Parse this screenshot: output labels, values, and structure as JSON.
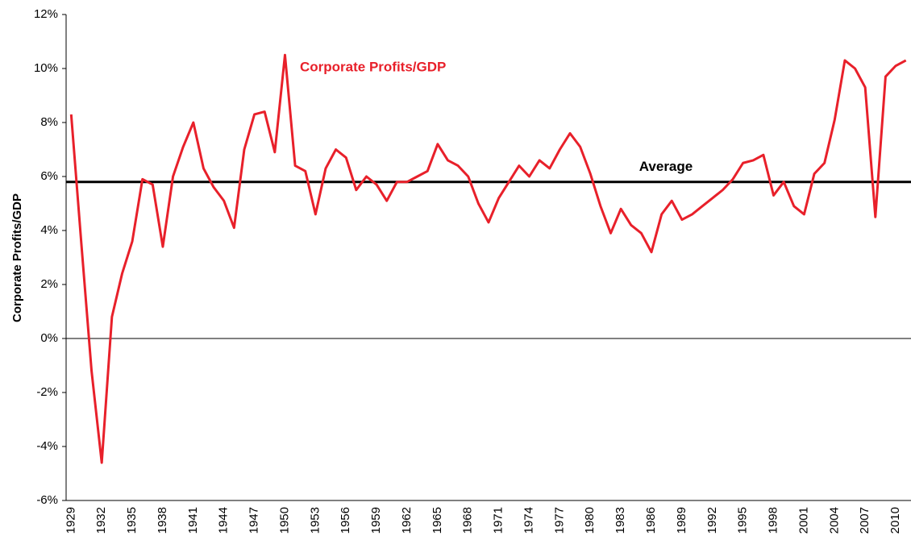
{
  "chart_data": {
    "type": "line",
    "y_label": "Corporate Profits/GDP",
    "categories": [
      "1929",
      null,
      null,
      "1932",
      null,
      null,
      "1935",
      null,
      null,
      "1938",
      null,
      null,
      "1941",
      null,
      null,
      "1944",
      null,
      null,
      "1947",
      null,
      null,
      "1950",
      null,
      null,
      "1953",
      null,
      null,
      "1956",
      null,
      null,
      "1959",
      null,
      null,
      "1962",
      null,
      null,
      "1965",
      null,
      null,
      "1968",
      null,
      null,
      "1971",
      null,
      null,
      "1974",
      null,
      null,
      "1977",
      null,
      null,
      "1980",
      null,
      null,
      "1983",
      null,
      null,
      "1986",
      null,
      null,
      "1989",
      null,
      null,
      "1992",
      null,
      null,
      "1995",
      null,
      null,
      "1998",
      null,
      null,
      "2001",
      null,
      null,
      "2004",
      null,
      null,
      "2007",
      null,
      null,
      "2010",
      null
    ],
    "series": [
      {
        "name": "Corporate Profits/GDP",
        "color": "#e8202a",
        "values": [
          8.3,
          3.5,
          -1.2,
          -4.6,
          0.8,
          2.4,
          3.6,
          5.9,
          5.7,
          3.4,
          6.0,
          7.1,
          8.0,
          6.3,
          5.6,
          5.1,
          4.1,
          7.0,
          8.3,
          8.4,
          6.9,
          10.5,
          6.4,
          6.2,
          4.6,
          6.3,
          7.0,
          6.7,
          5.5,
          6.0,
          5.7,
          5.1,
          5.8,
          5.8,
          6.0,
          6.2,
          7.2,
          6.6,
          6.4,
          6.0,
          5.0,
          4.3,
          5.2,
          5.8,
          6.4,
          6.0,
          6.6,
          6.3,
          7.0,
          7.6,
          7.1,
          6.1,
          4.9,
          3.9,
          4.8,
          4.2,
          3.9,
          3.2,
          4.6,
          5.1,
          4.4,
          4.6,
          4.9,
          5.2,
          5.5,
          5.9,
          6.5,
          6.6,
          6.8,
          5.3,
          5.8,
          4.9,
          4.6,
          6.1,
          6.5,
          8.1,
          10.3,
          10.0,
          9.3,
          4.5,
          9.7,
          10.1,
          10.3
        ]
      }
    ],
    "average": {
      "label": "Average",
      "value": 5.8,
      "color": "#000000"
    },
    "ylim": [
      -6,
      12
    ],
    "yticks": [
      {
        "value": -6,
        "label": "-6%"
      },
      {
        "value": -4,
        "label": "-4%"
      },
      {
        "value": -2,
        "label": "-2%"
      },
      {
        "value": 0,
        "label": "0%"
      },
      {
        "value": 2,
        "label": "2%"
      },
      {
        "value": 4,
        "label": "4%"
      },
      {
        "value": 6,
        "label": "6%"
      },
      {
        "value": 8,
        "label": "8%"
      },
      {
        "value": 10,
        "label": "10%"
      },
      {
        "value": 12,
        "label": "12%"
      }
    ],
    "grid": false
  }
}
